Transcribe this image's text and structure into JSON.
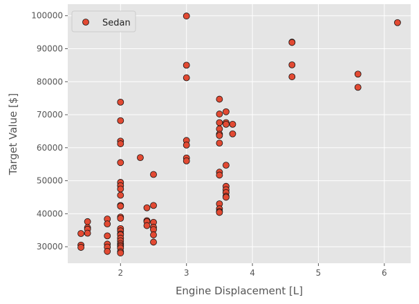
{
  "chart_data": {
    "type": "scatter",
    "xlabel": "Engine Displacement [L]",
    "ylabel": "Target Value [$]",
    "xlim": [
      1.2,
      6.4
    ],
    "ylim": [
      25000,
      103500
    ],
    "x_ticks": [
      2,
      3,
      4,
      5,
      6
    ],
    "y_ticks": [
      30000,
      40000,
      50000,
      60000,
      70000,
      80000,
      90000,
      100000
    ],
    "grid": true,
    "legend": {
      "placement": "top-left"
    },
    "series": [
      {
        "name": "Sedan",
        "color": "#E24A33",
        "points": [
          [
            1.4,
            34000
          ],
          [
            1.4,
            30500
          ],
          [
            1.4,
            29800
          ],
          [
            1.5,
            37600
          ],
          [
            1.5,
            35800
          ],
          [
            1.5,
            35300
          ],
          [
            1.5,
            34100
          ],
          [
            1.8,
            38400
          ],
          [
            1.8,
            36900
          ],
          [
            1.8,
            33300
          ],
          [
            1.8,
            30800
          ],
          [
            1.8,
            29900
          ],
          [
            1.8,
            28600
          ],
          [
            2.0,
            73800
          ],
          [
            2.0,
            68200
          ],
          [
            2.0,
            62000
          ],
          [
            2.0,
            61200
          ],
          [
            2.0,
            55500
          ],
          [
            2.0,
            49500
          ],
          [
            2.0,
            48500
          ],
          [
            2.0,
            47500
          ],
          [
            2.0,
            45600
          ],
          [
            2.0,
            42500
          ],
          [
            2.0,
            42300
          ],
          [
            2.0,
            39000
          ],
          [
            2.0,
            38600
          ],
          [
            2.0,
            35500
          ],
          [
            2.0,
            34800
          ],
          [
            2.0,
            33900
          ],
          [
            2.0,
            33600
          ],
          [
            2.0,
            32600
          ],
          [
            2.0,
            31800
          ],
          [
            2.0,
            31000
          ],
          [
            2.0,
            30500
          ],
          [
            2.0,
            30100
          ],
          [
            2.0,
            29600
          ],
          [
            2.0,
            28500
          ],
          [
            2.0,
            28100
          ],
          [
            2.3,
            57000
          ],
          [
            2.4,
            41800
          ],
          [
            2.4,
            37900
          ],
          [
            2.4,
            37600
          ],
          [
            2.4,
            36400
          ],
          [
            2.5,
            51900
          ],
          [
            2.5,
            42500
          ],
          [
            2.5,
            37400
          ],
          [
            2.5,
            35900
          ],
          [
            2.5,
            35200
          ],
          [
            2.5,
            33600
          ],
          [
            2.5,
            31400
          ],
          [
            3.0,
            99900
          ],
          [
            3.0,
            85000
          ],
          [
            3.0,
            81200
          ],
          [
            3.0,
            62200
          ],
          [
            3.0,
            60800
          ],
          [
            3.0,
            56900
          ],
          [
            3.0,
            56000
          ],
          [
            3.5,
            74700
          ],
          [
            3.5,
            70200
          ],
          [
            3.5,
            67600
          ],
          [
            3.5,
            65700
          ],
          [
            3.5,
            64100
          ],
          [
            3.5,
            63700
          ],
          [
            3.5,
            61400
          ],
          [
            3.5,
            52600
          ],
          [
            3.5,
            51700
          ],
          [
            3.5,
            43000
          ],
          [
            3.5,
            41500
          ],
          [
            3.5,
            40700
          ],
          [
            3.5,
            40400
          ],
          [
            3.6,
            70900
          ],
          [
            3.6,
            67600
          ],
          [
            3.6,
            67100
          ],
          [
            3.6,
            54700
          ],
          [
            3.6,
            48300
          ],
          [
            3.6,
            47300
          ],
          [
            3.6,
            46400
          ],
          [
            3.6,
            45300
          ],
          [
            3.6,
            45000
          ],
          [
            3.7,
            67100
          ],
          [
            3.7,
            64200
          ],
          [
            4.6,
            92000
          ],
          [
            4.6,
            91900
          ],
          [
            4.6,
            85100
          ],
          [
            4.6,
            81500
          ],
          [
            5.6,
            82300
          ],
          [
            5.6,
            78300
          ],
          [
            6.2,
            97900
          ]
        ]
      }
    ]
  }
}
